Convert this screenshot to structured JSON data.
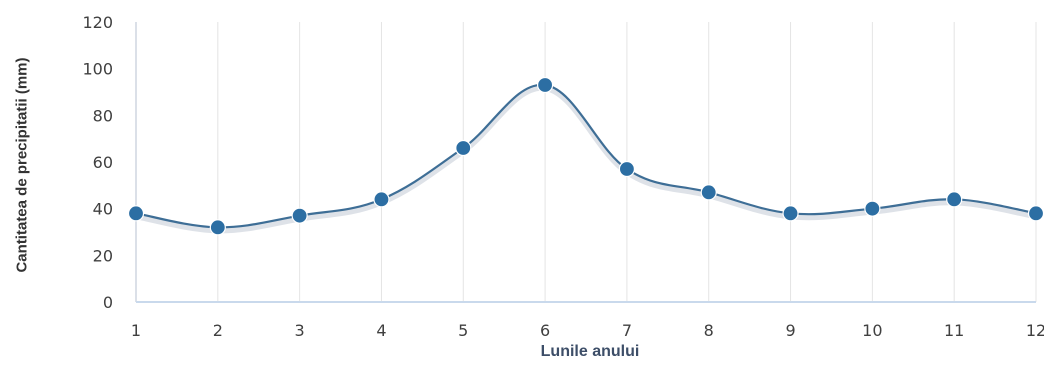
{
  "chart_data": {
    "type": "line",
    "title": "",
    "xlabel": "Lunile anului",
    "ylabel": "Cantitatea de precipitatii (mm)",
    "x": [
      1,
      2,
      3,
      4,
      5,
      6,
      7,
      8,
      9,
      10,
      11,
      12
    ],
    "x_tick_labels": [
      "1",
      "2",
      "3",
      "4",
      "5",
      "6",
      "7",
      "8",
      "9",
      "10",
      "11",
      "12"
    ],
    "y_ticks": [
      0,
      20,
      40,
      60,
      80,
      100,
      120
    ],
    "ylim": [
      0,
      120
    ],
    "xlim": [
      1,
      12
    ],
    "grid": "vertical",
    "legend": "none",
    "series": [
      {
        "values": [
          38,
          32,
          37,
          44,
          66,
          93,
          57,
          47,
          38,
          40,
          44,
          38
        ],
        "color": "#2c6ea3",
        "smooth": true,
        "markers": true
      }
    ]
  }
}
